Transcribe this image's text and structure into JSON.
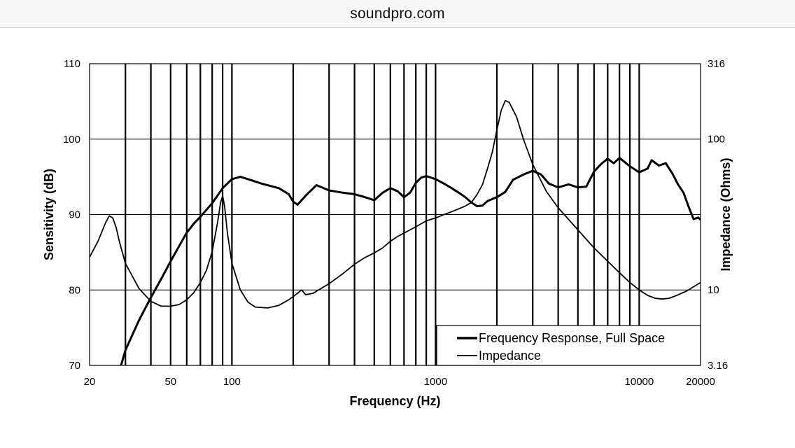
{
  "browser": {
    "url_text": "soundpro.com"
  },
  "chart_data": {
    "type": "line",
    "x_scale": "log",
    "xlabel": "Frequency (Hz)",
    "ylabel": "Sensitivity (dB)",
    "y2label": "Impedance (Ohms)",
    "xlim": [
      20,
      20000
    ],
    "ylim": [
      70,
      110
    ],
    "y2lim": [
      3.16,
      316
    ],
    "y2_scale": "log",
    "x_tick_labels": [
      {
        "value": 20,
        "label": "20"
      },
      {
        "value": 50,
        "label": "50"
      },
      {
        "value": 100,
        "label": "100"
      },
      {
        "value": 1000,
        "label": "1000"
      },
      {
        "value": 10000,
        "label": "10000"
      },
      {
        "value": 20000,
        "label": "20000"
      }
    ],
    "x_gridlines": [
      30,
      40,
      50,
      60,
      70,
      80,
      90,
      100,
      200,
      300,
      400,
      500,
      600,
      700,
      800,
      900,
      1000,
      2000,
      3000,
      4000,
      5000,
      6000,
      7000,
      8000,
      9000,
      10000
    ],
    "y_ticks": [
      {
        "value": 70,
        "label": "70"
      },
      {
        "value": 80,
        "label": "80"
      },
      {
        "value": 90,
        "label": "90"
      },
      {
        "value": 100,
        "label": "100"
      },
      {
        "value": 110,
        "label": "110"
      }
    ],
    "y2_ticks": [
      {
        "value": 3.16,
        "label": "3.16"
      },
      {
        "value": 10,
        "label": "10"
      },
      {
        "value": 100,
        "label": "100"
      },
      {
        "value": 316,
        "label": "316"
      }
    ],
    "grid": true,
    "legend_position": "bottom-right",
    "series": [
      {
        "name": "Frequency Response, Full Space",
        "axis": "left",
        "line_weight": "heavy",
        "points": [
          [
            28,
            69.2
          ],
          [
            30,
            72
          ],
          [
            35,
            76
          ],
          [
            40,
            79
          ],
          [
            45,
            81.5
          ],
          [
            50,
            83.8
          ],
          [
            55,
            85.8
          ],
          [
            60,
            87.6
          ],
          [
            65,
            88.8
          ],
          [
            70,
            89.7
          ],
          [
            80,
            91.5
          ],
          [
            90,
            93.5
          ],
          [
            100,
            94.7
          ],
          [
            110,
            95
          ],
          [
            120,
            94.7
          ],
          [
            140,
            94.1
          ],
          [
            170,
            93.5
          ],
          [
            190,
            92.7
          ],
          [
            200,
            91.7
          ],
          [
            210,
            91.3
          ],
          [
            230,
            92.5
          ],
          [
            260,
            93.9
          ],
          [
            300,
            93.2
          ],
          [
            350,
            92.9
          ],
          [
            400,
            92.7
          ],
          [
            450,
            92.3
          ],
          [
            500,
            91.9
          ],
          [
            550,
            92.9
          ],
          [
            600,
            93.5
          ],
          [
            650,
            93.1
          ],
          [
            700,
            92.3
          ],
          [
            750,
            92.9
          ],
          [
            800,
            94.2
          ],
          [
            850,
            94.9
          ],
          [
            900,
            95.1
          ],
          [
            1000,
            94.7
          ],
          [
            1100,
            94.1
          ],
          [
            1200,
            93.5
          ],
          [
            1300,
            92.9
          ],
          [
            1400,
            92.3
          ],
          [
            1500,
            91.6
          ],
          [
            1600,
            91.1
          ],
          [
            1700,
            91.2
          ],
          [
            1800,
            91.8
          ],
          [
            2000,
            92.3
          ],
          [
            2200,
            93
          ],
          [
            2400,
            94.6
          ],
          [
            2700,
            95.3
          ],
          [
            3000,
            95.8
          ],
          [
            3300,
            95.3
          ],
          [
            3600,
            94.1
          ],
          [
            4000,
            93.6
          ],
          [
            4500,
            94
          ],
          [
            5000,
            93.6
          ],
          [
            5500,
            93.7
          ],
          [
            6000,
            95.7
          ],
          [
            6500,
            96.7
          ],
          [
            7000,
            97.4
          ],
          [
            7500,
            96.8
          ],
          [
            8000,
            97.5
          ],
          [
            9000,
            96.4
          ],
          [
            10000,
            95.6
          ],
          [
            11000,
            96.1
          ],
          [
            11500,
            97.2
          ],
          [
            12500,
            96.5
          ],
          [
            13500,
            96.8
          ],
          [
            14500,
            95.5
          ],
          [
            15500,
            94
          ],
          [
            16500,
            92.9
          ],
          [
            17500,
            91
          ],
          [
            18500,
            89.4
          ],
          [
            19500,
            89.6
          ],
          [
            20000,
            89.3
          ]
        ]
      },
      {
        "name": "Impedance",
        "axis": "right",
        "line_weight": "thin",
        "points": [
          [
            20,
            16.5
          ],
          [
            22,
            21
          ],
          [
            24,
            28
          ],
          [
            25,
            31
          ],
          [
            26,
            30
          ],
          [
            27,
            26
          ],
          [
            28,
            21
          ],
          [
            30,
            15
          ],
          [
            35,
            10.2
          ],
          [
            40,
            8.4
          ],
          [
            45,
            7.8
          ],
          [
            50,
            7.8
          ],
          [
            55,
            8
          ],
          [
            60,
            8.6
          ],
          [
            65,
            9.6
          ],
          [
            70,
            11.2
          ],
          [
            75,
            13.5
          ],
          [
            80,
            18
          ],
          [
            85,
            28
          ],
          [
            88,
            38
          ],
          [
            90,
            42
          ],
          [
            92,
            36
          ],
          [
            95,
            24
          ],
          [
            100,
            15
          ],
          [
            110,
            10
          ],
          [
            120,
            8.3
          ],
          [
            130,
            7.7
          ],
          [
            150,
            7.6
          ],
          [
            170,
            7.9
          ],
          [
            190,
            8.6
          ],
          [
            210,
            9.5
          ],
          [
            220,
            10
          ],
          [
            230,
            9.3
          ],
          [
            250,
            9.5
          ],
          [
            300,
            11
          ],
          [
            350,
            12.8
          ],
          [
            400,
            14.8
          ],
          [
            450,
            16.4
          ],
          [
            500,
            17.6
          ],
          [
            550,
            19
          ],
          [
            600,
            21
          ],
          [
            650,
            22.6
          ],
          [
            700,
            23.8
          ],
          [
            800,
            26.2
          ],
          [
            900,
            28.7
          ],
          [
            1000,
            30
          ],
          [
            1100,
            31.6
          ],
          [
            1200,
            33
          ],
          [
            1300,
            34.5
          ],
          [
            1400,
            36
          ],
          [
            1500,
            38
          ],
          [
            1600,
            43
          ],
          [
            1700,
            50
          ],
          [
            1800,
            64
          ],
          [
            1900,
            82
          ],
          [
            2000,
            115
          ],
          [
            2100,
            155
          ],
          [
            2200,
            180
          ],
          [
            2300,
            175
          ],
          [
            2500,
            140
          ],
          [
            2700,
            100
          ],
          [
            3000,
            68
          ],
          [
            3500,
            45
          ],
          [
            4000,
            35
          ],
          [
            5000,
            25
          ],
          [
            6000,
            19
          ],
          [
            7000,
            15.5
          ],
          [
            8000,
            13
          ],
          [
            9000,
            11.2
          ],
          [
            10000,
            10
          ],
          [
            11000,
            9.2
          ],
          [
            12000,
            8.8
          ],
          [
            13000,
            8.7
          ],
          [
            14000,
            8.8
          ],
          [
            15000,
            9.1
          ],
          [
            17000,
            9.8
          ],
          [
            20000,
            11.2
          ]
        ]
      }
    ]
  }
}
